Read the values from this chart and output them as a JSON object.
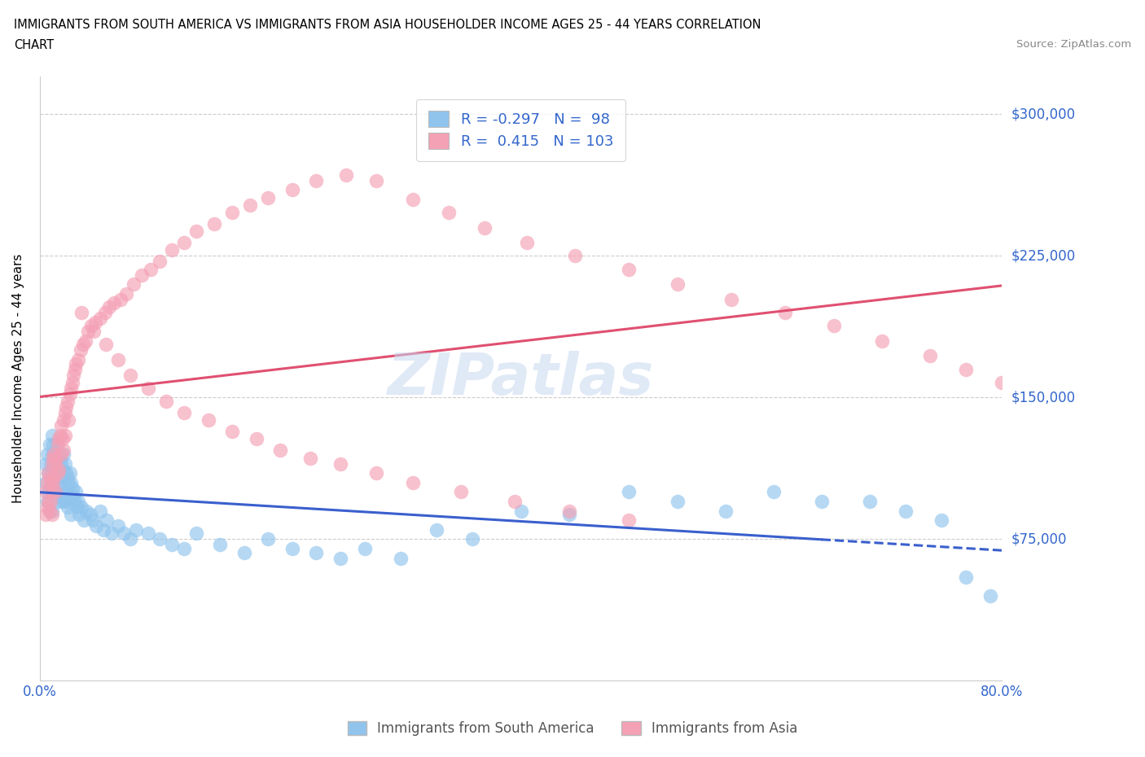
{
  "title_line1": "IMMIGRANTS FROM SOUTH AMERICA VS IMMIGRANTS FROM ASIA HOUSEHOLDER INCOME AGES 25 - 44 YEARS CORRELATION",
  "title_line2": "CHART",
  "source": "Source: ZipAtlas.com",
  "ylabel": "Householder Income Ages 25 - 44 years",
  "xlim": [
    0.0,
    0.8
  ],
  "ylim": [
    0,
    320000
  ],
  "yticks": [
    0,
    75000,
    150000,
    225000,
    300000
  ],
  "ytick_labels": [
    "",
    "$75,000",
    "$150,000",
    "$225,000",
    "$300,000"
  ],
  "xticks": [
    0.0,
    0.1,
    0.2,
    0.3,
    0.4,
    0.5,
    0.6,
    0.7,
    0.8
  ],
  "color_south_america": "#90c4ed",
  "color_asia": "#f4a0b5",
  "line_color_south_america": "#3a5fcd",
  "line_color_asia": "#e05070",
  "R_south_america": -0.297,
  "N_south_america": 98,
  "R_asia": 0.415,
  "N_asia": 103,
  "watermark": "ZIPatlas",
  "sa_x": [
    0.005,
    0.005,
    0.006,
    0.006,
    0.007,
    0.007,
    0.008,
    0.008,
    0.009,
    0.009,
    0.01,
    0.01,
    0.01,
    0.01,
    0.01,
    0.011,
    0.011,
    0.011,
    0.012,
    0.012,
    0.013,
    0.013,
    0.014,
    0.014,
    0.015,
    0.015,
    0.015,
    0.016,
    0.016,
    0.017,
    0.017,
    0.018,
    0.018,
    0.019,
    0.019,
    0.02,
    0.02,
    0.02,
    0.021,
    0.021,
    0.022,
    0.022,
    0.023,
    0.023,
    0.024,
    0.024,
    0.025,
    0.025,
    0.026,
    0.026,
    0.027,
    0.028,
    0.029,
    0.03,
    0.031,
    0.032,
    0.033,
    0.035,
    0.037,
    0.039,
    0.042,
    0.044,
    0.047,
    0.05,
    0.053,
    0.056,
    0.06,
    0.065,
    0.07,
    0.075,
    0.08,
    0.09,
    0.1,
    0.11,
    0.12,
    0.13,
    0.15,
    0.17,
    0.19,
    0.21,
    0.23,
    0.25,
    0.27,
    0.3,
    0.33,
    0.36,
    0.4,
    0.44,
    0.49,
    0.53,
    0.57,
    0.61,
    0.65,
    0.69,
    0.72,
    0.75,
    0.77,
    0.79
  ],
  "sa_y": [
    115000,
    105000,
    120000,
    95000,
    110000,
    100000,
    125000,
    90000,
    115000,
    105000,
    130000,
    120000,
    110000,
    100000,
    90000,
    125000,
    115000,
    105000,
    120000,
    100000,
    115000,
    108000,
    125000,
    100000,
    118000,
    108000,
    95000,
    112000,
    102000,
    118000,
    98000,
    115000,
    105000,
    112000,
    95000,
    120000,
    108000,
    95000,
    115000,
    100000,
    110000,
    98000,
    108000,
    92000,
    105000,
    95000,
    110000,
    98000,
    105000,
    88000,
    102000,
    98000,
    95000,
    100000,
    92000,
    95000,
    88000,
    92000,
    85000,
    90000,
    88000,
    85000,
    82000,
    90000,
    80000,
    85000,
    78000,
    82000,
    78000,
    75000,
    80000,
    78000,
    75000,
    72000,
    70000,
    78000,
    72000,
    68000,
    75000,
    70000,
    68000,
    65000,
    70000,
    65000,
    80000,
    75000,
    90000,
    88000,
    100000,
    95000,
    90000,
    100000,
    95000,
    95000,
    90000,
    85000,
    55000,
    45000
  ],
  "asia_x": [
    0.005,
    0.005,
    0.006,
    0.006,
    0.007,
    0.007,
    0.008,
    0.008,
    0.009,
    0.009,
    0.01,
    0.01,
    0.01,
    0.011,
    0.011,
    0.012,
    0.012,
    0.013,
    0.013,
    0.014,
    0.015,
    0.015,
    0.016,
    0.016,
    0.017,
    0.018,
    0.018,
    0.019,
    0.02,
    0.02,
    0.021,
    0.021,
    0.022,
    0.023,
    0.024,
    0.025,
    0.026,
    0.027,
    0.028,
    0.029,
    0.03,
    0.032,
    0.034,
    0.036,
    0.038,
    0.04,
    0.043,
    0.046,
    0.05,
    0.054,
    0.058,
    0.062,
    0.067,
    0.072,
    0.078,
    0.085,
    0.092,
    0.1,
    0.11,
    0.12,
    0.13,
    0.145,
    0.16,
    0.175,
    0.19,
    0.21,
    0.23,
    0.255,
    0.28,
    0.31,
    0.34,
    0.37,
    0.405,
    0.445,
    0.49,
    0.53,
    0.575,
    0.62,
    0.66,
    0.7,
    0.74,
    0.77,
    0.8,
    0.035,
    0.045,
    0.055,
    0.065,
    0.075,
    0.09,
    0.105,
    0.12,
    0.14,
    0.16,
    0.18,
    0.2,
    0.225,
    0.25,
    0.28,
    0.31,
    0.35,
    0.395,
    0.44,
    0.49
  ],
  "asia_y": [
    100000,
    88000,
    105000,
    92000,
    110000,
    95000,
    108000,
    90000,
    105000,
    95000,
    115000,
    100000,
    88000,
    118000,
    105000,
    120000,
    108000,
    115000,
    100000,
    118000,
    125000,
    110000,
    128000,
    112000,
    130000,
    135000,
    120000,
    128000,
    138000,
    122000,
    142000,
    130000,
    145000,
    148000,
    138000,
    152000,
    155000,
    158000,
    162000,
    165000,
    168000,
    170000,
    175000,
    178000,
    180000,
    185000,
    188000,
    190000,
    192000,
    195000,
    198000,
    200000,
    202000,
    205000,
    210000,
    215000,
    218000,
    222000,
    228000,
    232000,
    238000,
    242000,
    248000,
    252000,
    256000,
    260000,
    265000,
    268000,
    265000,
    255000,
    248000,
    240000,
    232000,
    225000,
    218000,
    210000,
    202000,
    195000,
    188000,
    180000,
    172000,
    165000,
    158000,
    195000,
    185000,
    178000,
    170000,
    162000,
    155000,
    148000,
    142000,
    138000,
    132000,
    128000,
    122000,
    118000,
    115000,
    110000,
    105000,
    100000,
    95000,
    90000,
    85000
  ]
}
